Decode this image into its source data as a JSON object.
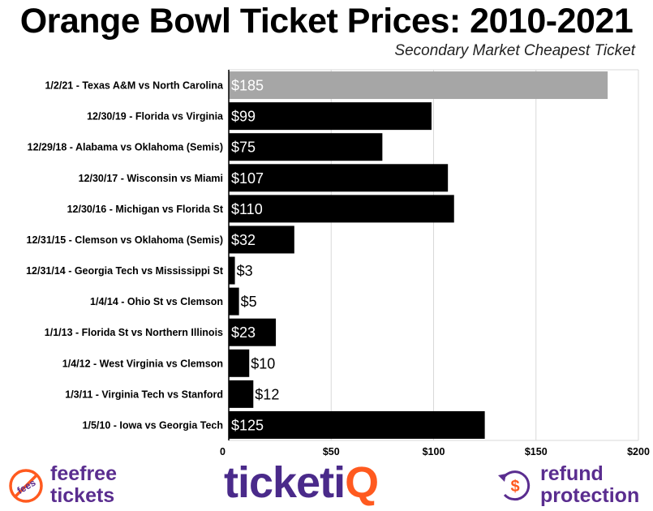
{
  "header": {
    "title": "Orange Bowl Ticket Prices: 2010-2021",
    "subtitle": "Secondary Market Cheapest Ticket"
  },
  "chart_data": {
    "type": "bar",
    "orientation": "horizontal",
    "title": "Orange Bowl Ticket Prices: 2010-2021",
    "subtitle": "Secondary Market Cheapest Ticket",
    "categories": [
      "1/2/21 - Texas A&M vs North Carolina",
      "12/30/19 - Florida vs Virginia",
      "12/29/18 - Alabama vs Oklahoma (Semis)",
      "12/30/17 - Wisconsin vs Miami",
      "12/30/16 - Michigan vs Florida St",
      "12/31/15 - Clemson vs Oklahoma (Semis)",
      "12/31/14 - Georgia Tech vs Mississippi St",
      "1/4/14 - Ohio St vs Clemson",
      "1/1/13 - Florida St vs Northern Illinois",
      "1/4/12 - West Virginia vs Clemson",
      "1/3/11 - Virginia Tech vs Stanford",
      "1/5/10 - Iowa vs Georgia Tech"
    ],
    "values": [
      185,
      99,
      75,
      107,
      110,
      32,
      3,
      5,
      23,
      10,
      12,
      125
    ],
    "data_labels": [
      "$185",
      "$99",
      "$75",
      "$107",
      "$110",
      "$32",
      "$3",
      "$5",
      "$23",
      "$10",
      "$12",
      "$125"
    ],
    "xlim": [
      0,
      200
    ],
    "x_ticks": [
      0,
      50,
      100,
      150,
      200
    ],
    "x_tick_labels": [
      "0",
      "$50",
      "$100",
      "$150",
      "$200"
    ],
    "grid": true,
    "colors": {
      "highlight": "#a6a6a6",
      "default": "#000000",
      "grid": "#d9d9d9"
    }
  },
  "footer": {
    "feefree": {
      "icon": "no-fees-icon",
      "icon_text": "fees",
      "line1": "feefree",
      "line2": "tickets"
    },
    "ticketiq": {
      "main": "ticketi",
      "accent": "Q"
    },
    "refund": {
      "icon": "refund-dollar-icon",
      "line1": "refund",
      "line2": "protection"
    },
    "colors": {
      "purple": "#5a2d8f",
      "orange": "#ff5a1f"
    }
  }
}
